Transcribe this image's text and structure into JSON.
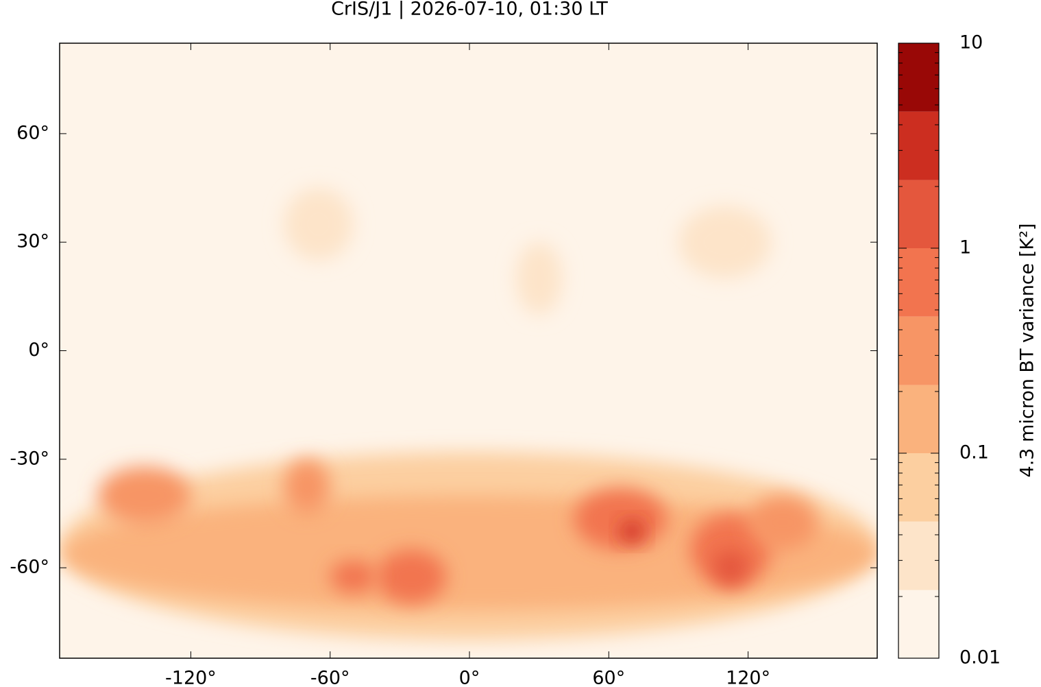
{
  "chart_data": {
    "type": "map",
    "title": "CrIS/J1 | 2026-07-10, 01:30 LT",
    "xlim": [
      -176.5,
      175.6
    ],
    "ylim": [
      -85,
      85
    ],
    "xticks": [
      {
        "value": -120,
        "label": "-120°"
      },
      {
        "value": -60,
        "label": "-60°"
      },
      {
        "value": 0,
        "label": "0°"
      },
      {
        "value": 60,
        "label": "60°"
      },
      {
        "value": 120,
        "label": "120°"
      }
    ],
    "yticks": [
      {
        "value": 60,
        "label": "60°"
      },
      {
        "value": 30,
        "label": "30°"
      },
      {
        "value": 0,
        "label": "0°"
      },
      {
        "value": -30,
        "label": "-30°"
      },
      {
        "value": -60,
        "label": "-60°"
      }
    ],
    "colorbar": {
      "label": "4.3 micron BT variance [K²]",
      "log_scale": true,
      "lim": [
        0.01,
        10
      ],
      "ticks": [
        0.01,
        0.1,
        1,
        10
      ],
      "minor_ticks": [
        0.02,
        0.03,
        0.04,
        0.05,
        0.06,
        0.07,
        0.08,
        0.09,
        0.2,
        0.3,
        0.4,
        0.5,
        0.6,
        0.7,
        0.8,
        0.9,
        2,
        3,
        4,
        5,
        6,
        7,
        8,
        9
      ],
      "levels": [
        0.01,
        0.0215,
        0.0464,
        0.1,
        0.215,
        0.464,
        1,
        2.15,
        4.64,
        10
      ],
      "colors": [
        "#fef4e9",
        "#fde4c9",
        "#fccfa0",
        "#fab27d",
        "#f79565",
        "#f2744f",
        "#e4573d",
        "#cc2e20",
        "#990806"
      ]
    },
    "patches": [
      {
        "lon": [
          -176,
          176
        ],
        "lat": [
          -80,
          -28
        ],
        "value": 0.06
      },
      {
        "lon": [
          -176,
          176
        ],
        "lat": [
          -72,
          -40
        ],
        "value": 0.12
      },
      {
        "lon": [
          -160,
          -120
        ],
        "lat": [
          -48,
          -32
        ],
        "value": 0.3
      },
      {
        "lon": [
          -40,
          -10
        ],
        "lat": [
          -70,
          -55
        ],
        "value": 0.6
      },
      {
        "lon": [
          -60,
          -40
        ],
        "lat": [
          -67,
          -58
        ],
        "value": 0.5
      },
      {
        "lon": [
          45,
          85
        ],
        "lat": [
          -55,
          -38
        ],
        "value": 0.6
      },
      {
        "lon": [
          65,
          75
        ],
        "lat": [
          -53,
          -47
        ],
        "value": 2.5
      },
      {
        "lon": [
          95,
          130
        ],
        "lat": [
          -65,
          -45
        ],
        "value": 0.6
      },
      {
        "lon": [
          105,
          120
        ],
        "lat": [
          -65,
          -55
        ],
        "value": 1.2
      },
      {
        "lon": [
          120,
          150
        ],
        "lat": [
          -55,
          -40
        ],
        "value": 0.3
      },
      {
        "lon": [
          -80,
          -60
        ],
        "lat": [
          -45,
          -30
        ],
        "value": 0.3
      },
      {
        "lon": [
          -80,
          -50
        ],
        "lat": [
          25,
          45
        ],
        "value": 0.03
      },
      {
        "lon": [
          20,
          40
        ],
        "lat": [
          10,
          30
        ],
        "value": 0.03
      },
      {
        "lon": [
          90,
          130
        ],
        "lat": [
          20,
          40
        ],
        "value": 0.03
      }
    ]
  }
}
